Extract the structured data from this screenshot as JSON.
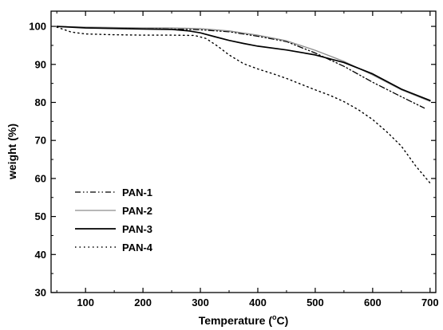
{
  "chart_data": {
    "type": "line",
    "xlabel": "Temperature (°C)",
    "xlabel_main": "Temperature (",
    "xlabel_degree": "o",
    "xlabel_unit": "C)",
    "ylabel": "weight (%)",
    "xlim": [
      40,
      710
    ],
    "ylim": [
      30,
      104
    ],
    "x_ticks": [
      100,
      200,
      300,
      400,
      500,
      600,
      700
    ],
    "y_ticks": [
      30,
      40,
      50,
      60,
      70,
      80,
      90,
      100
    ],
    "legend_position": "lower-left",
    "grid": false,
    "series": [
      {
        "name": "PAN-1",
        "style": "dash-dot-dot",
        "color": "#000000",
        "points": [
          [
            50,
            100
          ],
          [
            100,
            99.7
          ],
          [
            200,
            99.4
          ],
          [
            250,
            99.3
          ],
          [
            300,
            99.1
          ],
          [
            350,
            98.6
          ],
          [
            400,
            97.4
          ],
          [
            450,
            96
          ],
          [
            500,
            93
          ],
          [
            550,
            89.5
          ],
          [
            600,
            85.3
          ],
          [
            650,
            81.5
          ],
          [
            690,
            78.5
          ]
        ]
      },
      {
        "name": "PAN-2",
        "style": "solid",
        "color": "#8c8c8c",
        "points": [
          [
            50,
            100
          ],
          [
            100,
            99.8
          ],
          [
            200,
            99.6
          ],
          [
            250,
            99.6
          ],
          [
            300,
            99.4
          ],
          [
            350,
            98.8
          ],
          [
            400,
            97.7
          ],
          [
            450,
            96.2
          ],
          [
            500,
            93.7
          ],
          [
            550,
            90.8
          ],
          [
            600,
            87.2
          ],
          [
            650,
            83.3
          ],
          [
            700,
            80.3
          ]
        ]
      },
      {
        "name": "PAN-3",
        "style": "solid",
        "color": "#000000",
        "points": [
          [
            50,
            100
          ],
          [
            100,
            99.6
          ],
          [
            200,
            99.3
          ],
          [
            250,
            99.2
          ],
          [
            280,
            98.8
          ],
          [
            300,
            98.3
          ],
          [
            325,
            97.3
          ],
          [
            350,
            96.3
          ],
          [
            375,
            95.5
          ],
          [
            400,
            94.8
          ],
          [
            450,
            93.8
          ],
          [
            500,
            92.5
          ],
          [
            550,
            90.5
          ],
          [
            600,
            87.5
          ],
          [
            650,
            83.5
          ],
          [
            700,
            80.5
          ]
        ]
      },
      {
        "name": "PAN-4",
        "style": "dotted",
        "color": "#000000",
        "points": [
          [
            50,
            99.8
          ],
          [
            75,
            98.5
          ],
          [
            100,
            98
          ],
          [
            150,
            97.8
          ],
          [
            200,
            97.7
          ],
          [
            250,
            97.7
          ],
          [
            290,
            97.6
          ],
          [
            310,
            96.8
          ],
          [
            330,
            94.8
          ],
          [
            350,
            92.5
          ],
          [
            375,
            90.2
          ],
          [
            400,
            88.8
          ],
          [
            425,
            87.6
          ],
          [
            450,
            86.3
          ],
          [
            500,
            83.3
          ],
          [
            525,
            81.9
          ],
          [
            550,
            80.2
          ],
          [
            575,
            78.1
          ],
          [
            600,
            75.5
          ],
          [
            625,
            72.2
          ],
          [
            650,
            68.5
          ],
          [
            675,
            63.3
          ],
          [
            700,
            58.8
          ]
        ]
      }
    ]
  }
}
